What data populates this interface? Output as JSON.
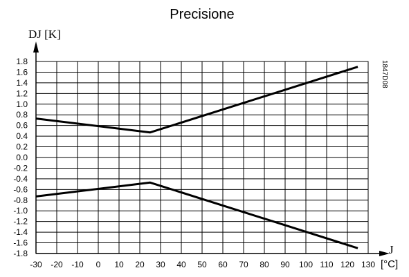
{
  "chart_data": {
    "type": "line",
    "title": "Precisione",
    "ylabel": "DJ [K]",
    "xlabel_symbol": "J",
    "xlabel_unit": "[°C]",
    "figure_code": "1847D08",
    "xlim": [
      -30,
      130
    ],
    "ylim": [
      -1.8,
      1.8
    ],
    "x_ticks": [
      -30,
      -20,
      -10,
      0,
      10,
      20,
      30,
      40,
      50,
      60,
      70,
      80,
      90,
      100,
      110,
      120,
      130
    ],
    "y_ticks": [
      "1.8",
      "1.6",
      "1.4",
      "1.2",
      "1.0",
      "0.8",
      "0.6",
      "0.4",
      "0.2",
      "0.0",
      "-0.2",
      "-0.4",
      "-0.6",
      "-0.8",
      "-1.0",
      "-1.2",
      "-1.4",
      "-1.6",
      "-1.8"
    ],
    "grid": true,
    "series": [
      {
        "x": [
          -30,
          25,
          125
        ],
        "y": [
          0.73,
          0.47,
          1.7
        ]
      },
      {
        "x": [
          -30,
          25,
          125
        ],
        "y": [
          -0.73,
          -0.47,
          -1.7
        ]
      }
    ]
  }
}
